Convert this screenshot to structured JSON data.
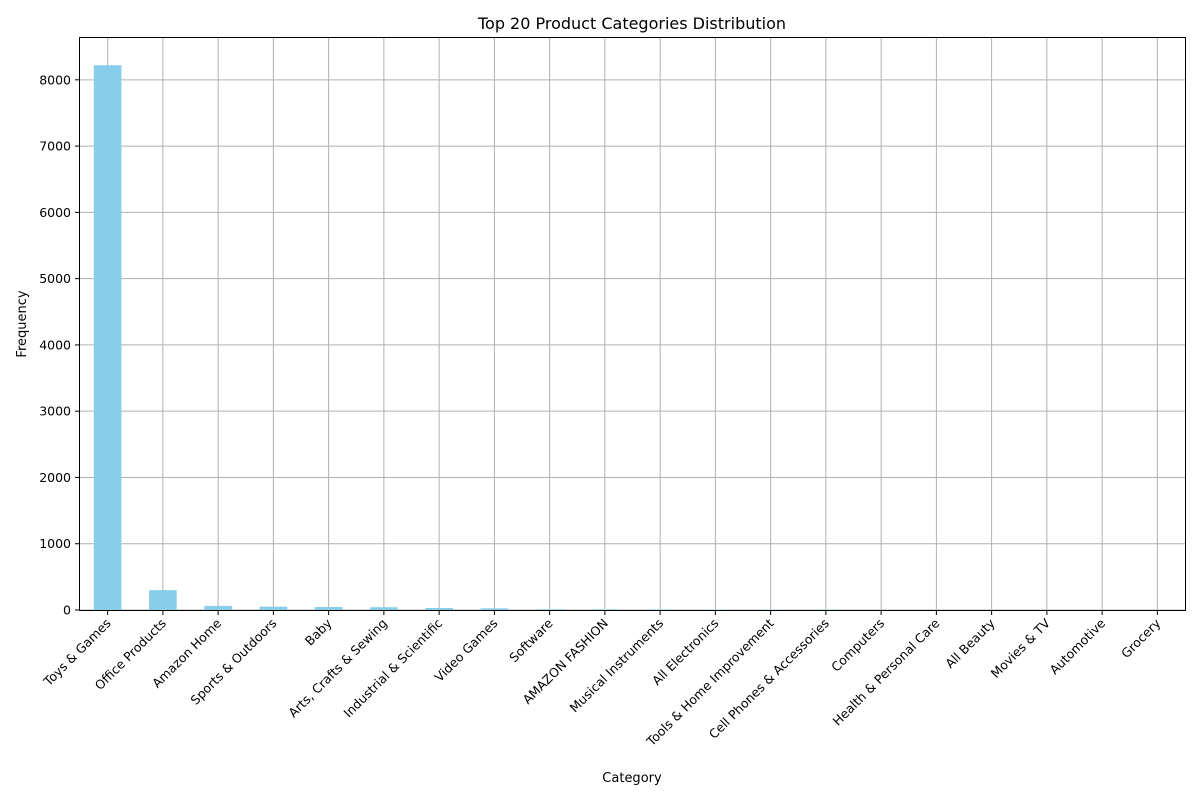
{
  "chart_data": {
    "type": "bar",
    "title": "Top 20 Product Categories Distribution",
    "xlabel": "Category",
    "ylabel": "Frequency",
    "categories": [
      "Toys & Games",
      "Office Products",
      "Amazon Home",
      "Sports & Outdoors",
      "Baby",
      "Arts, Crafts & Sewing",
      "Industrial & Scientific",
      "Video Games",
      "Software",
      "AMAZON FASHION",
      "Musical Instruments",
      "All Electronics",
      "Tools & Home Improvement",
      "Cell Phones & Accessories",
      "Computers",
      "Health & Personal Care",
      "All Beauty",
      "Movies & TV",
      "Automotive",
      "Grocery"
    ],
    "values": [
      8220,
      300,
      62,
      50,
      45,
      42,
      30,
      25,
      12,
      10,
      9,
      8,
      6,
      3,
      2,
      2,
      1,
      1,
      1,
      1
    ],
    "ylim": [
      0,
      8631
    ],
    "yticks": [
      0,
      1000,
      2000,
      3000,
      4000,
      5000,
      6000,
      7000,
      8000
    ],
    "grid": true,
    "bar_color": "#87ceeb"
  }
}
